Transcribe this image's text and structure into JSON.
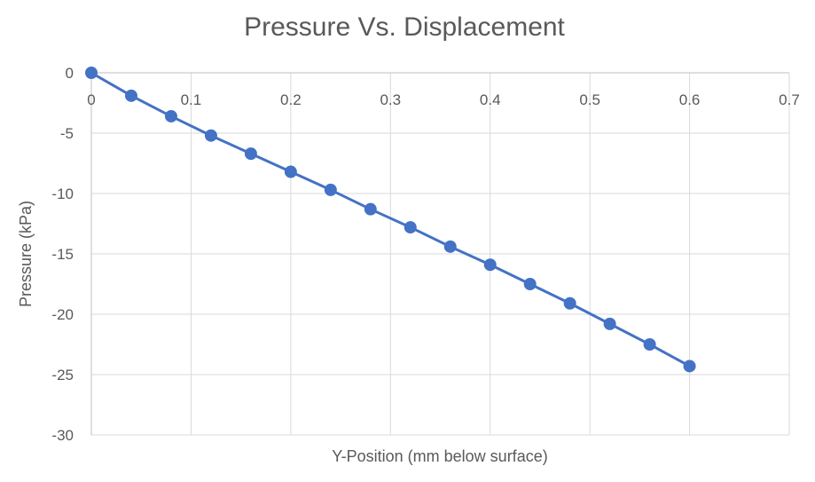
{
  "chart_data": {
    "type": "scatter",
    "title": "Pressure Vs. Displacement",
    "xlabel": "Y-Position (mm below surface)",
    "ylabel": "Pressure (kPa)",
    "xlim": [
      0,
      0.7
    ],
    "ylim": [
      -30,
      0
    ],
    "x_ticks": [
      0,
      0.1,
      0.2,
      0.3,
      0.4,
      0.5,
      0.6,
      0.7
    ],
    "y_ticks": [
      0,
      -5,
      -10,
      -15,
      -20,
      -25,
      -30
    ],
    "x_tick_labels": [
      "0",
      "0.1",
      "0.2",
      "0.3",
      "0.4",
      "0.5",
      "0.6",
      "0.7"
    ],
    "y_tick_labels": [
      "0",
      "-5",
      "-10",
      "-15",
      "-20",
      "-25",
      "-30"
    ],
    "grid": true,
    "legend": "none",
    "series": [
      {
        "name": "Pressure",
        "color": "#4472c4",
        "marker": "circle",
        "line": "straight",
        "x": [
          0,
          0.04,
          0.08,
          0.12,
          0.16,
          0.2,
          0.24,
          0.28,
          0.32,
          0.36,
          0.4,
          0.44,
          0.48,
          0.52,
          0.56,
          0.6
        ],
        "y": [
          0,
          -1.9,
          -3.6,
          -5.2,
          -6.7,
          -8.2,
          -9.7,
          -11.3,
          -12.8,
          -14.4,
          -15.9,
          -17.5,
          -19.1,
          -20.8,
          -22.5,
          -24.3
        ]
      }
    ]
  }
}
